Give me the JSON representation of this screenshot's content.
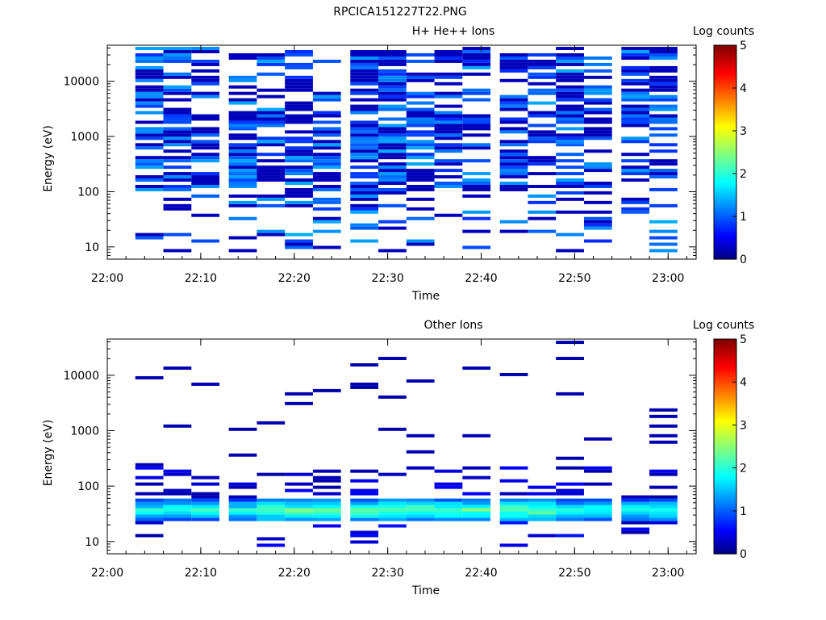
{
  "figure_title": "RPCICA151227T22.PNG",
  "chart_data": [
    {
      "type": "heatmap",
      "title": "H+ He++ Ions",
      "xlabel": "Time",
      "ylabel": "Energy (eV)",
      "colorbar_label": "Log counts",
      "colorbar_ticks": [
        "0",
        "1",
        "2",
        "3",
        "4",
        "5"
      ],
      "colorbar_range": [
        0,
        5
      ],
      "x_ticks": [
        "22:00",
        "22:10",
        "22:20",
        "22:30",
        "22:40",
        "22:50",
        "23:00"
      ],
      "xlim": [
        "22:00",
        "23:03"
      ],
      "y_ticks": [
        "10",
        "100",
        "1000",
        "10000"
      ],
      "ylim": [
        6,
        45000
      ],
      "yscale": "log",
      "time_bins": [
        "22:03",
        "22:06",
        "22:09",
        "22:13",
        "22:16",
        "22:19",
        "22:22",
        "22:26",
        "22:29",
        "22:32",
        "22:35",
        "22:38",
        "22:42",
        "22:45",
        "22:48",
        "22:51",
        "22:55",
        "22:58"
      ],
      "pattern": "dense_top",
      "seed": 7
    },
    {
      "type": "heatmap",
      "title": "Other Ions",
      "xlabel": "Time",
      "ylabel": "Energy (eV)",
      "colorbar_label": "Log counts",
      "colorbar_ticks": [
        "0",
        "1",
        "2",
        "3",
        "4",
        "5"
      ],
      "colorbar_range": [
        0,
        5
      ],
      "x_ticks": [
        "22:00",
        "22:10",
        "22:20",
        "22:30",
        "22:40",
        "22:50",
        "23:00"
      ],
      "xlim": [
        "22:00",
        "23:03"
      ],
      "y_ticks": [
        "10",
        "100",
        "1000",
        "10000"
      ],
      "ylim": [
        6,
        45000
      ],
      "yscale": "log",
      "time_bins": [
        "22:03",
        "22:06",
        "22:09",
        "22:13",
        "22:16",
        "22:19",
        "22:22",
        "22:26",
        "22:29",
        "22:32",
        "22:35",
        "22:38",
        "22:42",
        "22:45",
        "22:48",
        "22:51",
        "22:55",
        "22:58"
      ],
      "pattern": "band_low",
      "band_energy_range_eV": [
        22,
        60
      ],
      "band_peak_log_counts": 2.6,
      "seed": 13
    }
  ]
}
